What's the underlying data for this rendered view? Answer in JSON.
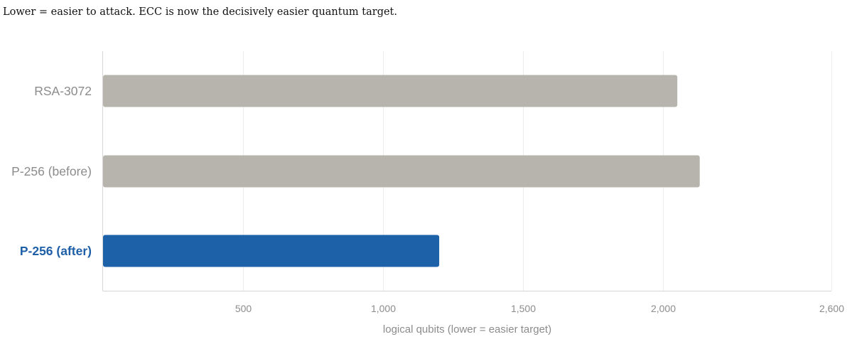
{
  "subtitle": "Lower = easier to attack. ECC is now the decisively easier quantum target.",
  "colors": {
    "default_bar": "#b6b4ad",
    "highlight_bar": "#1d62a8",
    "highlight_label": "#1f5fa8",
    "label": "#8c8c8c",
    "grid": "#ececec",
    "axis": "#d5d5d5"
  },
  "chart_data": {
    "type": "bar",
    "orientation": "horizontal",
    "categories": [
      "RSA-3072",
      "P-256  (before)",
      "P-256  (after)"
    ],
    "values": [
      2050,
      2130,
      1200
    ],
    "highlighted": [
      false,
      false,
      true
    ],
    "xlabel": "logical qubits  (lower = easier target)",
    "ylabel": "",
    "xlim": [
      0,
      2600
    ],
    "xticks": [
      500,
      1000,
      1500,
      2000,
      2600
    ],
    "xtick_labels": [
      "500",
      "1,000",
      "1,500",
      "2,000",
      "2,600"
    ],
    "grid": true,
    "legend": "none"
  }
}
